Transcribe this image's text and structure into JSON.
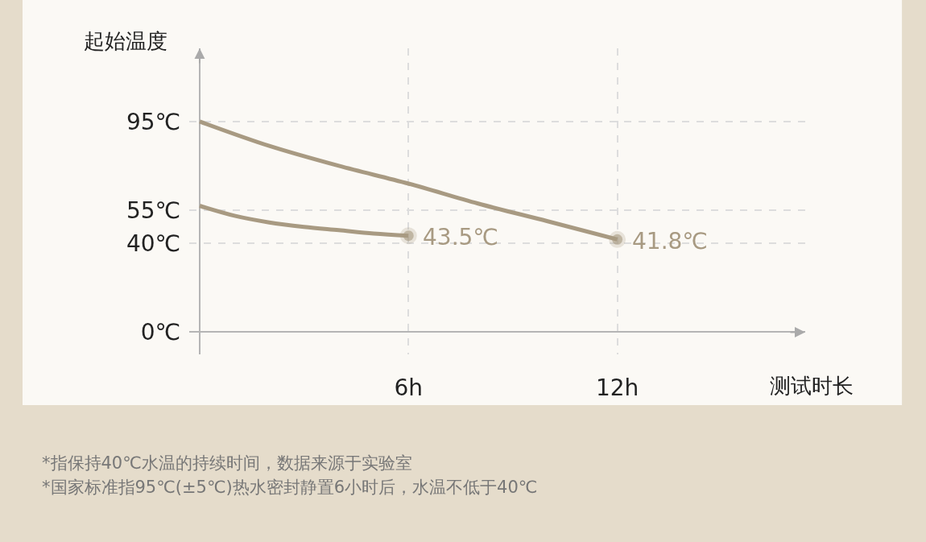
{
  "chart_data": {
    "type": "line",
    "xlabel": "测试时长",
    "ylabel": "起始温度",
    "series": [
      {
        "color": "#a89a82",
        "x": [
          0,
          2,
          4,
          6,
          8,
          10,
          12
        ],
        "values": [
          95,
          84,
          75,
          67,
          58,
          50,
          41.8
        ],
        "value_labels": [
          null,
          null,
          null,
          null,
          null,
          null,
          "41.8℃"
        ]
      },
      {
        "color": "#a89a82",
        "x": [
          0,
          1,
          2,
          3,
          4,
          5,
          6
        ],
        "values": [
          57,
          52.5,
          49.5,
          47.5,
          46,
          44.5,
          43.5
        ],
        "value_labels": [
          null,
          null,
          null,
          null,
          null,
          null,
          "43.5℃"
        ]
      }
    ],
    "xlim": [
      -0.3,
      17.4
    ],
    "ylim": [
      -10,
      128
    ],
    "xticks": [
      {
        "value": 6,
        "label": "6h"
      },
      {
        "value": 12,
        "label": "12h"
      }
    ],
    "yticks": [
      {
        "value": 0,
        "label": "0℃"
      },
      {
        "value": 40,
        "label": "40℃"
      },
      {
        "value": 55,
        "label": "55℃"
      },
      {
        "value": 95,
        "label": "95℃"
      }
    ],
    "grid": true,
    "line_style": "solid",
    "annotations": [
      "*指保持40℃水温的持续时间，数据来源于实验室",
      "*国家标准指95℃(±5℃)热水密封静置6小时后，水温不低于40℃"
    ]
  }
}
